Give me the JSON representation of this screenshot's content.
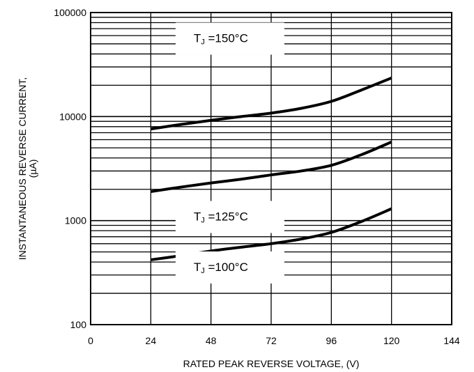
{
  "chart_data": {
    "type": "line",
    "xlabel": "RATED PEAK REVERSE VOLTAGE, (V)",
    "ylabel_line1": "INSTANTANEOUS REVERSE CURRENT,",
    "ylabel_line2": "(µA)",
    "xlim": [
      0,
      144
    ],
    "ylim": [
      100,
      100000
    ],
    "yscale": "log",
    "grid": true,
    "xticks": [
      0,
      24,
      48,
      72,
      96,
      120,
      144
    ],
    "xtick_labels": [
      "0",
      "24",
      "48",
      "72",
      "96",
      "120",
      "144"
    ],
    "yticks": [
      100,
      1000,
      10000,
      100000
    ],
    "ytick_labels": [
      "100",
      "1000",
      "10000",
      "100000"
    ],
    "series": [
      {
        "label_main": "T",
        "label_sub": "J",
        "label_rest": " =150°C",
        "label_at": [
          35,
          57000
        ],
        "x": [
          24,
          36,
          48,
          60,
          72,
          84,
          96,
          108,
          120
        ],
        "y": [
          7600,
          8400,
          9200,
          10000,
          10800,
          12000,
          14000,
          18000,
          23500
        ]
      },
      {
        "label_main": "T",
        "label_sub": "J",
        "label_rest": " =125°C",
        "label_at": [
          35,
          1100
        ],
        "x": [
          24,
          36,
          48,
          60,
          72,
          84,
          96,
          108,
          120
        ],
        "y": [
          1900,
          2100,
          2300,
          2500,
          2750,
          3000,
          3400,
          4300,
          5700
        ]
      },
      {
        "label_main": "T",
        "label_sub": "J",
        "label_rest": " =100°C",
        "label_at": [
          35,
          360
        ],
        "x": [
          24,
          36,
          48,
          60,
          72,
          84,
          96,
          108,
          120
        ],
        "y": [
          420,
          460,
          510,
          555,
          600,
          665,
          770,
          980,
          1300
        ]
      }
    ]
  }
}
